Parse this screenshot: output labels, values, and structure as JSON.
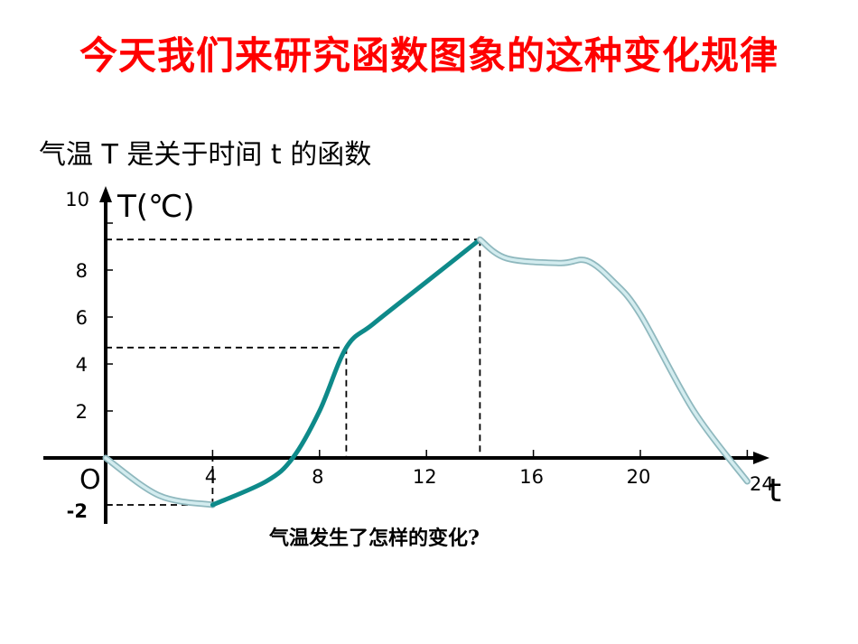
{
  "slide": {
    "title": "今天我们来研究函数图象的这种变化规律",
    "subtitle": "气温 T 是关于时间 t 的函数",
    "question": "气温发生了怎样的变化?"
  },
  "chart_data": {
    "type": "line",
    "xlabel": "t",
    "ylabel": "T(℃)",
    "origin_label": "O",
    "x_ticks": [
      "4",
      "8",
      "12",
      "16",
      "20",
      "24"
    ],
    "y_ticks": [
      "-2",
      "2",
      "4",
      "6",
      "8",
      "10"
    ],
    "xlim": [
      0,
      24
    ],
    "ylim": [
      -2,
      10
    ],
    "series": [
      {
        "segment": "decreasing-early",
        "color": "#a8d2d8",
        "x": [
          0,
          2,
          4
        ],
        "y": [
          0,
          -1.6,
          -2
        ]
      },
      {
        "segment": "increasing",
        "color": "#0e8a8a",
        "x": [
          4,
          6,
          7,
          8,
          9,
          10,
          12,
          14
        ],
        "y": [
          -2,
          -1,
          0,
          2,
          4.7,
          5.7,
          7.5,
          9.3
        ]
      },
      {
        "segment": "decreasing-late",
        "color": "#a8d2d8",
        "x": [
          14,
          15,
          17,
          18,
          19,
          20,
          22,
          24
        ],
        "y": [
          9.3,
          8.5,
          8.3,
          8.4,
          7.5,
          6.1,
          2,
          -1
        ]
      }
    ],
    "reference_points": [
      {
        "x": 4,
        "y": -2
      },
      {
        "x": 9,
        "y": 4.7
      },
      {
        "x": 14,
        "y": 9.3
      }
    ],
    "grid": false
  }
}
